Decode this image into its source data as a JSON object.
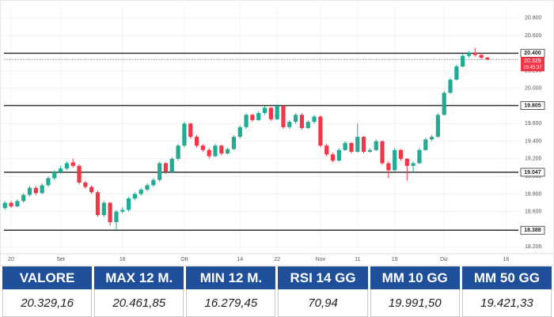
{
  "chart_data": {
    "type": "candlestick",
    "candles": [
      [
        18640,
        18720,
        18620,
        18700
      ],
      [
        18700,
        18720,
        18640,
        18660
      ],
      [
        18660,
        18740,
        18650,
        18720
      ],
      [
        18720,
        18810,
        18700,
        18790
      ],
      [
        18790,
        18890,
        18770,
        18870
      ],
      [
        18870,
        18890,
        18790,
        18810
      ],
      [
        18810,
        18920,
        18800,
        18900
      ],
      [
        18900,
        19000,
        18880,
        18980
      ],
      [
        18980,
        19070,
        18960,
        19050
      ],
      [
        19050,
        19120,
        19030,
        19090
      ],
      [
        19090,
        19170,
        19070,
        19150
      ],
      [
        19160,
        19200,
        19100,
        19120
      ],
      [
        19120,
        19140,
        18910,
        18930
      ],
      [
        18930,
        18950,
        18860,
        18880
      ],
      [
        18880,
        18900,
        18800,
        18820
      ],
      [
        18820,
        18840,
        18540,
        18560
      ],
      [
        18560,
        18720,
        18540,
        18700
      ],
      [
        18700,
        18710,
        18440,
        18480
      ],
      [
        18480,
        18620,
        18400,
        18600
      ],
      [
        18600,
        18650,
        18580,
        18620
      ],
      [
        18620,
        18770,
        18600,
        18750
      ],
      [
        18750,
        18820,
        18730,
        18800
      ],
      [
        18800,
        18870,
        18780,
        18850
      ],
      [
        18850,
        18920,
        18830,
        18900
      ],
      [
        18900,
        18980,
        18880,
        18960
      ],
      [
        18960,
        19170,
        18940,
        19150
      ],
      [
        19150,
        19160,
        19030,
        19050
      ],
      [
        19050,
        19220,
        19040,
        19200
      ],
      [
        19200,
        19370,
        19180,
        19350
      ],
      [
        19350,
        19620,
        19330,
        19600
      ],
      [
        19600,
        19610,
        19430,
        19450
      ],
      [
        19450,
        19470,
        19330,
        19350
      ],
      [
        19350,
        19370,
        19280,
        19300
      ],
      [
        19300,
        19320,
        19200,
        19230
      ],
      [
        19230,
        19370,
        19220,
        19350
      ],
      [
        19350,
        19360,
        19240,
        19260
      ],
      [
        19260,
        19330,
        19250,
        19310
      ],
      [
        19310,
        19470,
        19300,
        19450
      ],
      [
        19450,
        19580,
        19430,
        19560
      ],
      [
        19560,
        19720,
        19540,
        19700
      ],
      [
        19700,
        19710,
        19620,
        19640
      ],
      [
        19640,
        19740,
        19630,
        19720
      ],
      [
        19720,
        19800,
        19700,
        19780
      ],
      [
        19780,
        19790,
        19630,
        19650
      ],
      [
        19650,
        19820,
        19640,
        19800
      ],
      [
        19800,
        19810,
        19540,
        19560
      ],
      [
        19560,
        19640,
        19540,
        19620
      ],
      [
        19620,
        19720,
        19600,
        19700
      ],
      [
        19700,
        19720,
        19530,
        19550
      ],
      [
        19550,
        19640,
        19540,
        19620
      ],
      [
        19620,
        19700,
        19600,
        19680
      ],
      [
        19680,
        19690,
        19330,
        19350
      ],
      [
        19350,
        19370,
        19230,
        19250
      ],
      [
        19250,
        19270,
        19160,
        19180
      ],
      [
        19180,
        19320,
        19170,
        19300
      ],
      [
        19300,
        19400,
        19290,
        19380
      ],
      [
        19380,
        19390,
        19260,
        19280
      ],
      [
        19280,
        19600,
        19270,
        19450
      ],
      [
        19450,
        19460,
        19260,
        19280
      ],
      [
        19280,
        19320,
        19270,
        19300
      ],
      [
        19300,
        19420,
        19290,
        19400
      ],
      [
        19400,
        19410,
        19130,
        19150
      ],
      [
        19150,
        19170,
        18980,
        19070
      ],
      [
        19070,
        19320,
        19060,
        19300
      ],
      [
        19300,
        19310,
        19180,
        19200
      ],
      [
        19200,
        19210,
        18950,
        19120
      ],
      [
        19120,
        19170,
        19050,
        19150
      ],
      [
        19150,
        19320,
        19140,
        19300
      ],
      [
        19300,
        19440,
        19290,
        19420
      ],
      [
        19420,
        19470,
        19400,
        19450
      ],
      [
        19450,
        19720,
        19440,
        19700
      ],
      [
        19700,
        19970,
        19690,
        19950
      ],
      [
        19950,
        20120,
        19940,
        20100
      ],
      [
        20100,
        20270,
        20090,
        20250
      ],
      [
        20250,
        20390,
        20240,
        20370
      ],
      [
        20370,
        20430,
        20350,
        20400
      ],
      [
        20400,
        20460,
        20360,
        20380
      ],
      [
        20380,
        20400,
        20330,
        20350
      ],
      [
        20350,
        20360,
        20320,
        20329
      ]
    ],
    "up_color": "#22ab94",
    "down_color": "#f23645",
    "xlim": [
      -0.8,
      83
    ],
    "ylim": [
      18130,
      20960
    ],
    "xticks": [
      {
        "value": 1,
        "label": "20"
      },
      {
        "value": 9,
        "label": "Set"
      },
      {
        "value": 19,
        "label": "16"
      },
      {
        "value": 29,
        "label": "Ott"
      },
      {
        "value": 38,
        "label": "14"
      },
      {
        "value": 44,
        "label": "22"
      },
      {
        "value": 51,
        "label": "Nov"
      },
      {
        "value": 57,
        "label": "11"
      },
      {
        "value": 63,
        "label": "19"
      },
      {
        "value": 71,
        "label": "Dic"
      },
      {
        "value": 81,
        "label": "16"
      }
    ],
    "yticks": [
      {
        "value": 18200,
        "label": "18.200"
      },
      {
        "value": 18400,
        "label": "18.400"
      },
      {
        "value": 18600,
        "label": "18.600"
      },
      {
        "value": 18800,
        "label": "18.800"
      },
      {
        "value": 19000,
        "label": "19.000"
      },
      {
        "value": 19200,
        "label": "19.200"
      },
      {
        "value": 19400,
        "label": "19.400"
      },
      {
        "value": 19600,
        "label": "19.600"
      },
      {
        "value": 19800,
        "label": "19.800"
      },
      {
        "value": 20000,
        "label": "20.000"
      },
      {
        "value": 20200,
        "label": "20.200"
      },
      {
        "value": 20600,
        "label": "20.600"
      },
      {
        "value": 20800,
        "label": "20.800"
      }
    ],
    "levels": [
      {
        "value": 20400,
        "label": "20.400"
      },
      {
        "value": 19805,
        "label": "19.805"
      },
      {
        "value": 19047,
        "label": "19.047"
      },
      {
        "value": 18388,
        "label": "18.388"
      }
    ],
    "last_price": {
      "value": 20329,
      "label": "20.329",
      "time": "15:45:37"
    }
  },
  "table": {
    "headers": [
      "VALORE",
      "MAX 12 M.",
      "MIN 12 M.",
      "RSI 14 GG",
      "MM 10 GG",
      "MM 50 GG"
    ],
    "values": [
      "20.329,16",
      "20.461,85",
      "16.279,45",
      "70,94",
      "19.991,50",
      "19.421,33"
    ]
  }
}
